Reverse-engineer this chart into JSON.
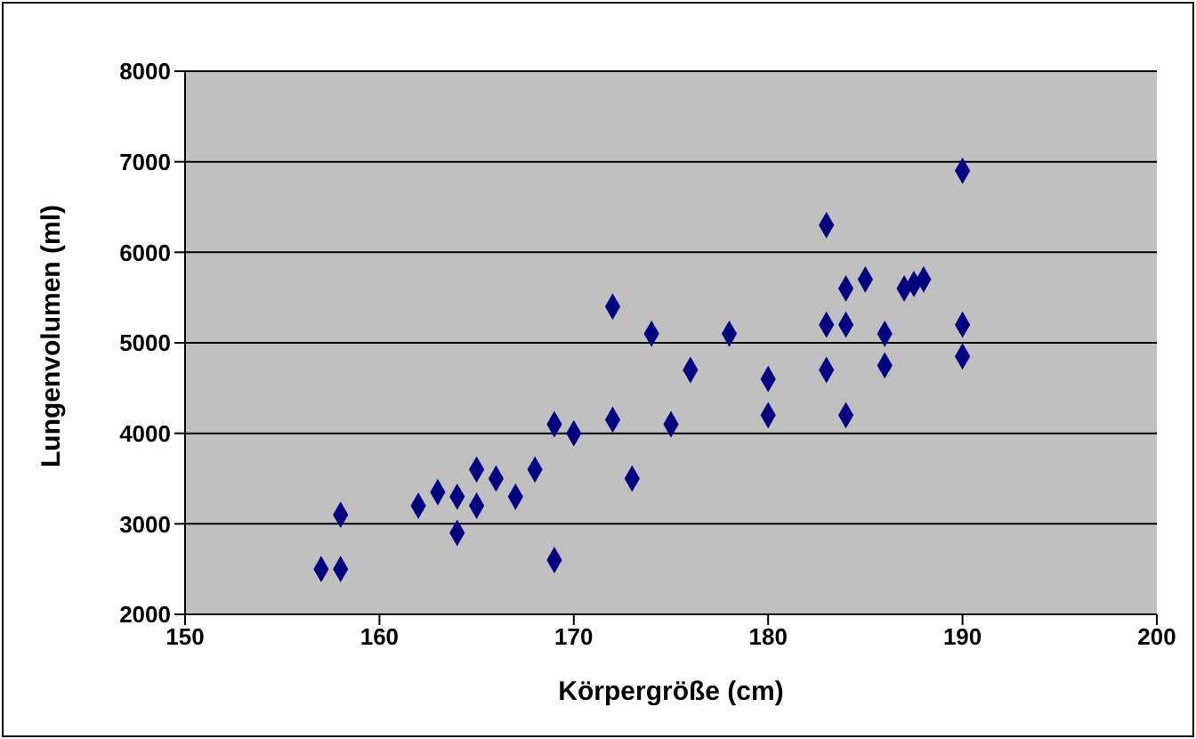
{
  "chart_data": {
    "type": "scatter",
    "xlabel": "Körpergröße (cm)",
    "ylabel": "Lungenvolumen (ml)",
    "xlim": [
      150,
      200
    ],
    "xticks": [
      150,
      160,
      170,
      180,
      190,
      200
    ],
    "ylim": [
      2000,
      8000
    ],
    "yticks": [
      2000,
      3000,
      4000,
      5000,
      6000,
      7000,
      8000
    ],
    "grid": "y",
    "legend": false,
    "marker": "diamond",
    "series": [
      {
        "color": "#000080",
        "x": [
          157,
          158,
          158,
          162,
          163,
          164,
          164,
          165,
          165,
          166,
          167,
          168,
          169,
          169,
          170,
          172,
          172,
          173,
          174,
          175,
          176,
          178,
          180,
          180,
          183,
          183,
          183,
          184,
          184,
          184,
          185,
          186,
          186,
          187,
          187.5,
          188,
          190,
          190,
          190
        ],
        "values": [
          2500,
          2500,
          3100,
          3200,
          3350,
          3300,
          2900,
          3600,
          3200,
          3500,
          3300,
          3600,
          4100,
          2600,
          4000,
          5400,
          4150,
          3500,
          5100,
          4100,
          4700,
          5100,
          4600,
          4200,
          6300,
          5200,
          4700,
          5600,
          5200,
          4200,
          5700,
          5100,
          4750,
          5600,
          5650,
          5700,
          6900,
          5200,
          4850
        ]
      }
    ]
  }
}
